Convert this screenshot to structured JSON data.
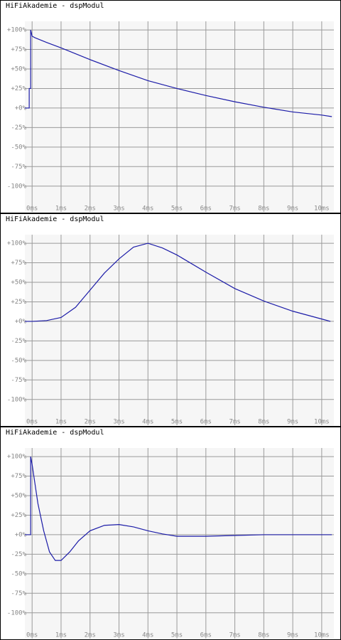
{
  "chart_data": [
    {
      "type": "line",
      "title": "HiFiAkademie - dspModul",
      "x": [
        -0.25,
        -0.1,
        -0.1,
        -0.05,
        -0.05,
        0,
        0.1,
        0.5,
        1,
        2,
        3,
        4,
        5,
        6,
        7,
        8,
        9,
        10,
        10.35
      ],
      "series": [
        {
          "color": "#1c1ca8",
          "values": [
            0,
            0,
            25,
            25,
            100,
            92,
            90,
            84,
            77,
            62,
            48,
            35,
            25,
            16,
            8,
            1,
            -5,
            -9,
            -11
          ]
        }
      ],
      "xlim": [
        -0.25,
        10.42
      ],
      "ylim": [
        -133,
        111
      ],
      "xticks": [
        {
          "value": 0,
          "label": "0ms"
        },
        {
          "value": 1,
          "label": "1ms"
        },
        {
          "value": 2,
          "label": "2ms"
        },
        {
          "value": 3,
          "label": "3ms"
        },
        {
          "value": 4,
          "label": "4ms"
        },
        {
          "value": 5,
          "label": "5ms"
        },
        {
          "value": 6,
          "label": "6ms"
        },
        {
          "value": 7,
          "label": "7ms"
        },
        {
          "value": 8,
          "label": "8ms"
        },
        {
          "value": 9,
          "label": "9ms"
        },
        {
          "value": 10,
          "label": "10ms"
        }
      ],
      "yticks": [
        {
          "value": 100,
          "label": "+100%"
        },
        {
          "value": 75,
          "label": "+75%"
        },
        {
          "value": 50,
          "label": "+50%"
        },
        {
          "value": 25,
          "label": "+25%"
        },
        {
          "value": 0,
          "label": "+0%"
        },
        {
          "value": -25,
          "label": "-25%"
        },
        {
          "value": -50,
          "label": "-50%"
        },
        {
          "value": -75,
          "label": "-75%"
        },
        {
          "value": -100,
          "label": "-100%"
        }
      ],
      "grid": true
    },
    {
      "type": "line",
      "title": "HiFiAkademie - dspModul",
      "x": [
        -0.25,
        0,
        0.5,
        1,
        1.5,
        2,
        2.5,
        3,
        3.5,
        4,
        4.5,
        5,
        6,
        7,
        8,
        9,
        10,
        10.3
      ],
      "series": [
        {
          "color": "#1c1ca8",
          "values": [
            0,
            0,
            1,
            5,
            18,
            40,
            62,
            80,
            95,
            100,
            94,
            85,
            63,
            42,
            26,
            13,
            3,
            0
          ]
        }
      ],
      "xlim": [
        -0.25,
        10.42
      ],
      "ylim": [
        -133,
        111
      ],
      "xticks": [
        {
          "value": 0,
          "label": "0ms"
        },
        {
          "value": 1,
          "label": "1ms"
        },
        {
          "value": 2,
          "label": "2ms"
        },
        {
          "value": 3,
          "label": "3ms"
        },
        {
          "value": 4,
          "label": "4ms"
        },
        {
          "value": 5,
          "label": "5ms"
        },
        {
          "value": 6,
          "label": "6ms"
        },
        {
          "value": 7,
          "label": "7ms"
        },
        {
          "value": 8,
          "label": "8ms"
        },
        {
          "value": 9,
          "label": "9ms"
        },
        {
          "value": 10,
          "label": "10ms"
        }
      ],
      "yticks": [
        {
          "value": 100,
          "label": "+100%"
        },
        {
          "value": 75,
          "label": "+75%"
        },
        {
          "value": 50,
          "label": "+50%"
        },
        {
          "value": 25,
          "label": "+25%"
        },
        {
          "value": 0,
          "label": "+0%"
        },
        {
          "value": -25,
          "label": "-25%"
        },
        {
          "value": -50,
          "label": "-50%"
        },
        {
          "value": -75,
          "label": "-75%"
        },
        {
          "value": -100,
          "label": "-100%"
        }
      ],
      "grid": true
    },
    {
      "type": "line",
      "title": "HiFiAkademie - dspModul",
      "x": [
        -0.25,
        -0.1,
        -0.1,
        -0.05,
        -0.05,
        0,
        0.2,
        0.4,
        0.6,
        0.8,
        1,
        1.3,
        1.6,
        2,
        2.5,
        3,
        3.5,
        4,
        4.5,
        5,
        6,
        7,
        8,
        9,
        10,
        10.35
      ],
      "series": [
        {
          "color": "#1c1ca8",
          "values": [
            0,
            0,
            0,
            0,
            100,
            90,
            40,
            5,
            -22,
            -33,
            -33,
            -22,
            -8,
            5,
            12,
            13,
            10,
            5,
            1,
            -2,
            -2,
            -1,
            0,
            0,
            0,
            0
          ]
        }
      ],
      "xlim": [
        -0.25,
        10.42
      ],
      "ylim": [
        -133,
        111
      ],
      "xticks": [
        {
          "value": 0,
          "label": "0ms"
        },
        {
          "value": 1,
          "label": "1ms"
        },
        {
          "value": 2,
          "label": "2ms"
        },
        {
          "value": 3,
          "label": "3ms"
        },
        {
          "value": 4,
          "label": "4ms"
        },
        {
          "value": 5,
          "label": "5ms"
        },
        {
          "value": 6,
          "label": "6ms"
        },
        {
          "value": 7,
          "label": "7ms"
        },
        {
          "value": 8,
          "label": "8ms"
        },
        {
          "value": 9,
          "label": "9ms"
        },
        {
          "value": 10,
          "label": "10ms"
        }
      ],
      "yticks": [
        {
          "value": 100,
          "label": "+100%"
        },
        {
          "value": 75,
          "label": "+75%"
        },
        {
          "value": 50,
          "label": "+50%"
        },
        {
          "value": 25,
          "label": "+25%"
        },
        {
          "value": 0,
          "label": "+0%"
        },
        {
          "value": -25,
          "label": "-25%"
        },
        {
          "value": -50,
          "label": "-50%"
        },
        {
          "value": -75,
          "label": "-75%"
        },
        {
          "value": -100,
          "label": "-100%"
        }
      ],
      "grid": true
    }
  ]
}
